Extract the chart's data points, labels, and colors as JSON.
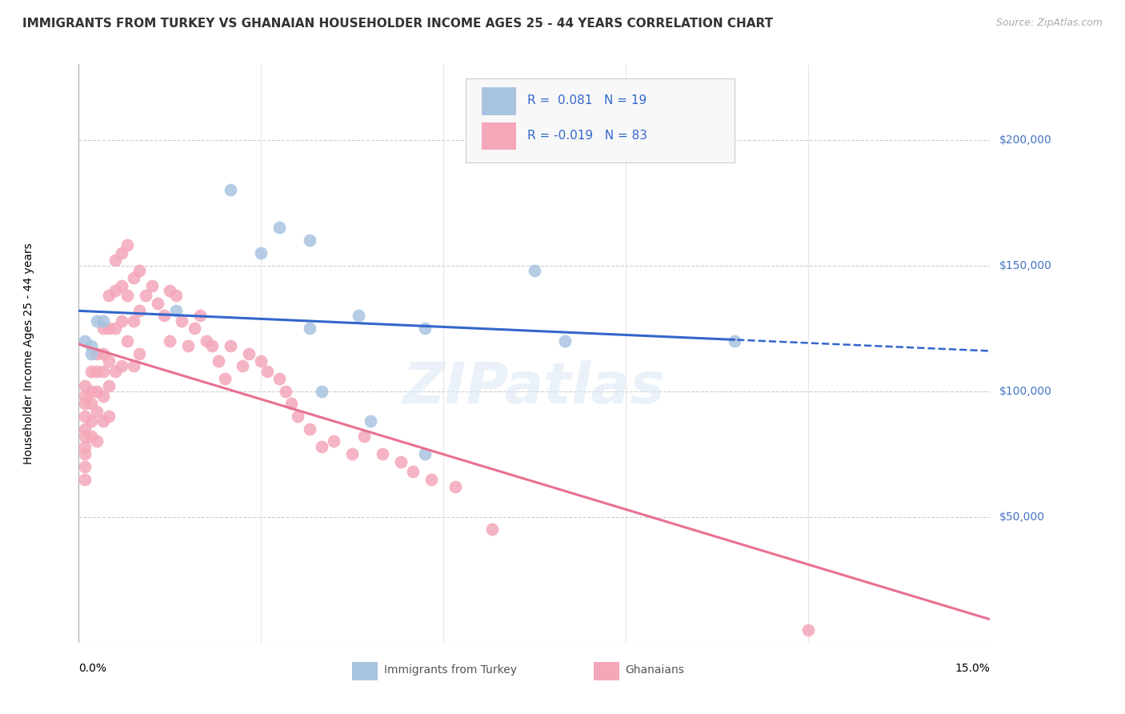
{
  "title": "IMMIGRANTS FROM TURKEY VS GHANAIAN HOUSEHOLDER INCOME AGES 25 - 44 YEARS CORRELATION CHART",
  "source": "Source: ZipAtlas.com",
  "ylabel": "Householder Income Ages 25 - 44 years",
  "xlim": [
    0.0,
    0.15
  ],
  "ylim": [
    0,
    230000
  ],
  "legend1_color": "#a8c4e0",
  "legend2_color": "#f4a7b9",
  "trend1_color": "#3366cc",
  "trend2_color": "#e87090",
  "watermark": "ZIPatlas",
  "turkey_x": [
    0.001,
    0.002,
    0.002,
    0.003,
    0.004,
    0.016,
    0.025,
    0.03,
    0.033,
    0.038,
    0.038,
    0.04,
    0.046,
    0.048,
    0.057,
    0.057,
    0.075,
    0.08,
    0.108
  ],
  "turkey_y": [
    120000,
    118000,
    115000,
    128000,
    128000,
    132000,
    180000,
    155000,
    165000,
    160000,
    125000,
    100000,
    130000,
    88000,
    125000,
    75000,
    148000,
    120000,
    120000
  ],
  "ghana_x": [
    0.001,
    0.001,
    0.001,
    0.001,
    0.001,
    0.001,
    0.001,
    0.001,
    0.001,
    0.001,
    0.002,
    0.002,
    0.002,
    0.002,
    0.002,
    0.003,
    0.003,
    0.003,
    0.003,
    0.003,
    0.004,
    0.004,
    0.004,
    0.004,
    0.004,
    0.005,
    0.005,
    0.005,
    0.005,
    0.005,
    0.006,
    0.006,
    0.006,
    0.006,
    0.007,
    0.007,
    0.007,
    0.007,
    0.008,
    0.008,
    0.008,
    0.009,
    0.009,
    0.009,
    0.01,
    0.01,
    0.01,
    0.011,
    0.012,
    0.013,
    0.014,
    0.015,
    0.015,
    0.016,
    0.017,
    0.018,
    0.019,
    0.02,
    0.021,
    0.022,
    0.023,
    0.024,
    0.025,
    0.027,
    0.028,
    0.03,
    0.031,
    0.033,
    0.034,
    0.035,
    0.036,
    0.038,
    0.04,
    0.042,
    0.045,
    0.047,
    0.05,
    0.053,
    0.055,
    0.058,
    0.062,
    0.068,
    0.12
  ],
  "ghana_y": [
    102000,
    98000,
    95000,
    90000,
    85000,
    82000,
    78000,
    75000,
    70000,
    65000,
    108000,
    100000,
    95000,
    88000,
    82000,
    115000,
    108000,
    100000,
    92000,
    80000,
    125000,
    115000,
    108000,
    98000,
    88000,
    138000,
    125000,
    112000,
    102000,
    90000,
    152000,
    140000,
    125000,
    108000,
    155000,
    142000,
    128000,
    110000,
    158000,
    138000,
    120000,
    145000,
    128000,
    110000,
    148000,
    132000,
    115000,
    138000,
    142000,
    135000,
    130000,
    140000,
    120000,
    138000,
    128000,
    118000,
    125000,
    130000,
    120000,
    118000,
    112000,
    105000,
    118000,
    110000,
    115000,
    112000,
    108000,
    105000,
    100000,
    95000,
    90000,
    85000,
    78000,
    80000,
    75000,
    82000,
    75000,
    72000,
    68000,
    65000,
    62000,
    45000,
    5000
  ]
}
